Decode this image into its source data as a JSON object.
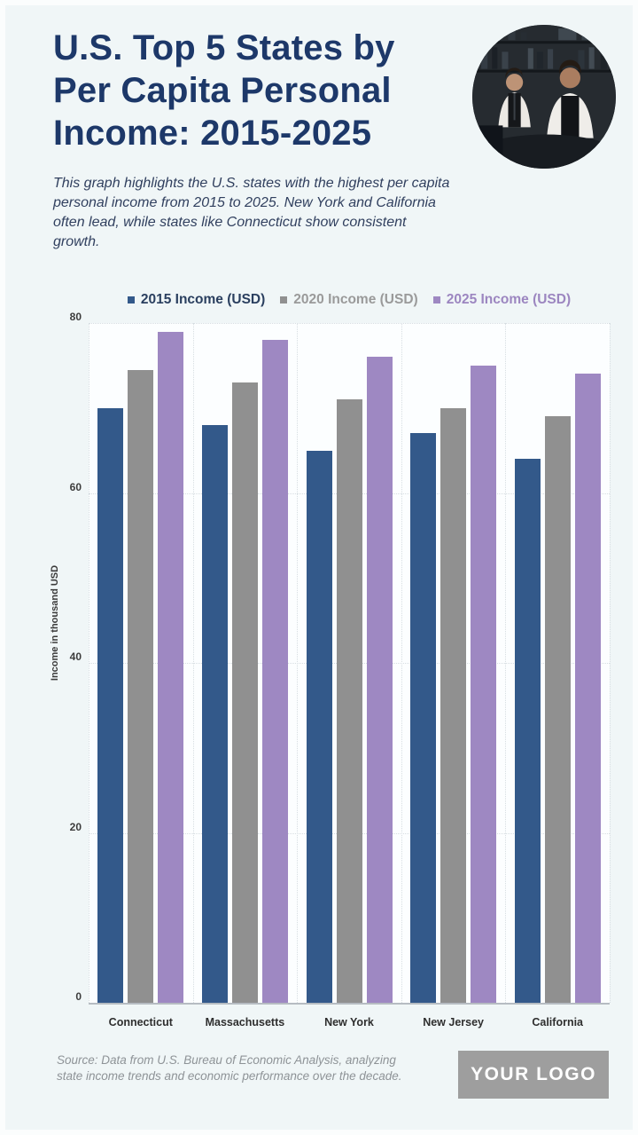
{
  "colors": {
    "page_background": "#f0f6f7",
    "title": "#1d3869",
    "subtitle": "#31405f",
    "plot_background": "#fcfeff",
    "gridline": "#d7dee2",
    "baseline": "#b6bcc2",
    "axis_text": "#3c3c3c",
    "source_text": "#8e9397",
    "logo_background": "#9e9e9e"
  },
  "header": {
    "title_lines": [
      "U.S. Top 5 States by",
      "Per Capita Personal",
      "Income: 2015-2025"
    ],
    "subtitle": "This graph highlights the U.S. states with the highest per capita personal income from 2015 to 2025. New York and California often lead, while states like Connecticut show consistent growth.",
    "photo_description": "two-bartenders-at-bar-photo"
  },
  "chart_data": {
    "type": "bar",
    "title": "",
    "categories": [
      "Connecticut",
      "Massachusetts",
      "New York",
      "New Jersey",
      "California"
    ],
    "series": [
      {
        "name": "2015 Income (USD)",
        "color": "#33598a",
        "text_color": "#2a3f5f",
        "values": [
          70,
          68,
          65,
          67,
          64
        ]
      },
      {
        "name": "2020 Income (USD)",
        "color": "#909090",
        "text_color": "#9a9a9a",
        "values": [
          74.5,
          73,
          71,
          70,
          69
        ]
      },
      {
        "name": "2025 Income (USD)",
        "color": "#9e88c2",
        "text_color": "#9c86c0",
        "values": [
          79,
          78,
          76,
          75,
          74
        ]
      }
    ],
    "xlabel": "",
    "ylabel": "Income in thousand USD",
    "yticks": [
      0,
      20,
      40,
      60,
      80
    ],
    "ylim": [
      0,
      80
    ],
    "grid": true,
    "legend_position": "top"
  },
  "footer": {
    "source": "Source: Data from U.S. Bureau of Economic Analysis, analyzing state income trends and economic performance over the decade.",
    "logo_text": "YOUR LOGO"
  }
}
